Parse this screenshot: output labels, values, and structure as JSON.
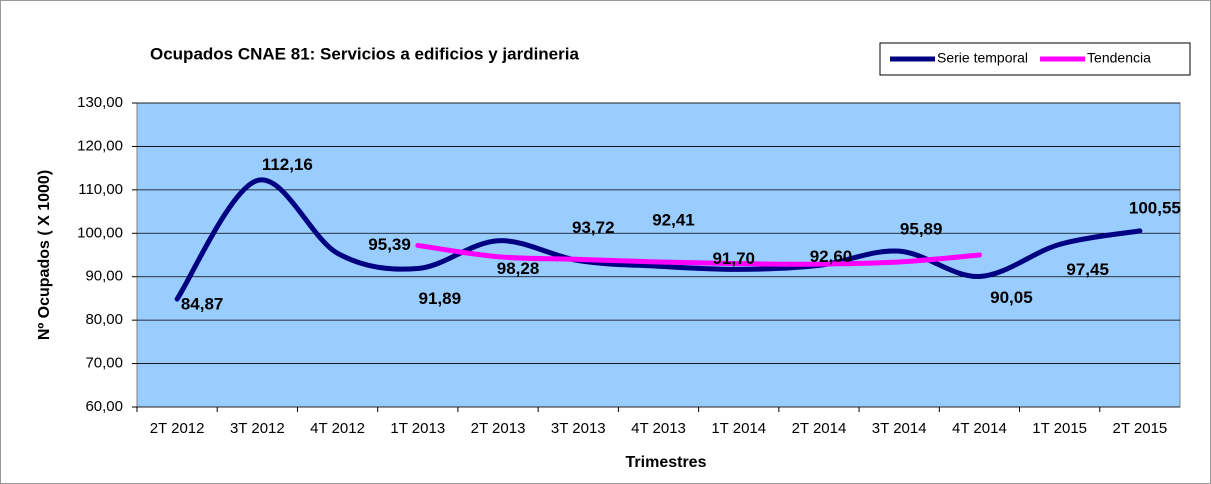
{
  "chart_data": {
    "type": "line",
    "title": "Ocupados CNAE 81: Servicios a edificios y jardineria",
    "x_label": "Trimestres",
    "y_label": "Nº Ocupados ( X 1000)",
    "categories": [
      "2T 2012",
      "3T 2012",
      "4T 2012",
      "1T 2013",
      "2T 2013",
      "3T 2013",
      "4T 2013",
      "1T 2014",
      "2T 2014",
      "3T 2014",
      "4T 2014",
      "1T 2015",
      "2T 2015"
    ],
    "series": [
      {
        "name": "Serie temporal",
        "color": "#000080",
        "values": [
          84.87,
          112.16,
          95.39,
          91.89,
          98.28,
          93.72,
          92.41,
          91.7,
          92.6,
          95.89,
          90.05,
          97.45,
          100.55
        ],
        "value_labels": [
          "84,87",
          "112,16",
          "95,39",
          "91,89",
          "98,28",
          "93,72",
          "92,41",
          "91,70",
          "92,60",
          "95,89",
          "90,05",
          "97,45",
          "100,55"
        ]
      },
      {
        "name": "Tendencia",
        "color": "#ff00ff",
        "values": [
          null,
          null,
          null,
          97.2,
          94.6,
          94.0,
          93.4,
          93.0,
          92.9,
          93.4,
          95.0,
          null,
          null
        ]
      }
    ],
    "ylim": [
      60,
      130
    ],
    "yticks": [
      {
        "value": 60,
        "label": "60,00"
      },
      {
        "value": 70,
        "label": "70,00"
      },
      {
        "value": 80,
        "label": "80,00"
      },
      {
        "value": 90,
        "label": "90,00"
      },
      {
        "value": 100,
        "label": "100,00"
      },
      {
        "value": 110,
        "label": "110,00"
      },
      {
        "value": 120,
        "label": "120,00"
      },
      {
        "value": 130,
        "label": "130,00"
      }
    ],
    "grid": true,
    "legend": "top-right"
  }
}
